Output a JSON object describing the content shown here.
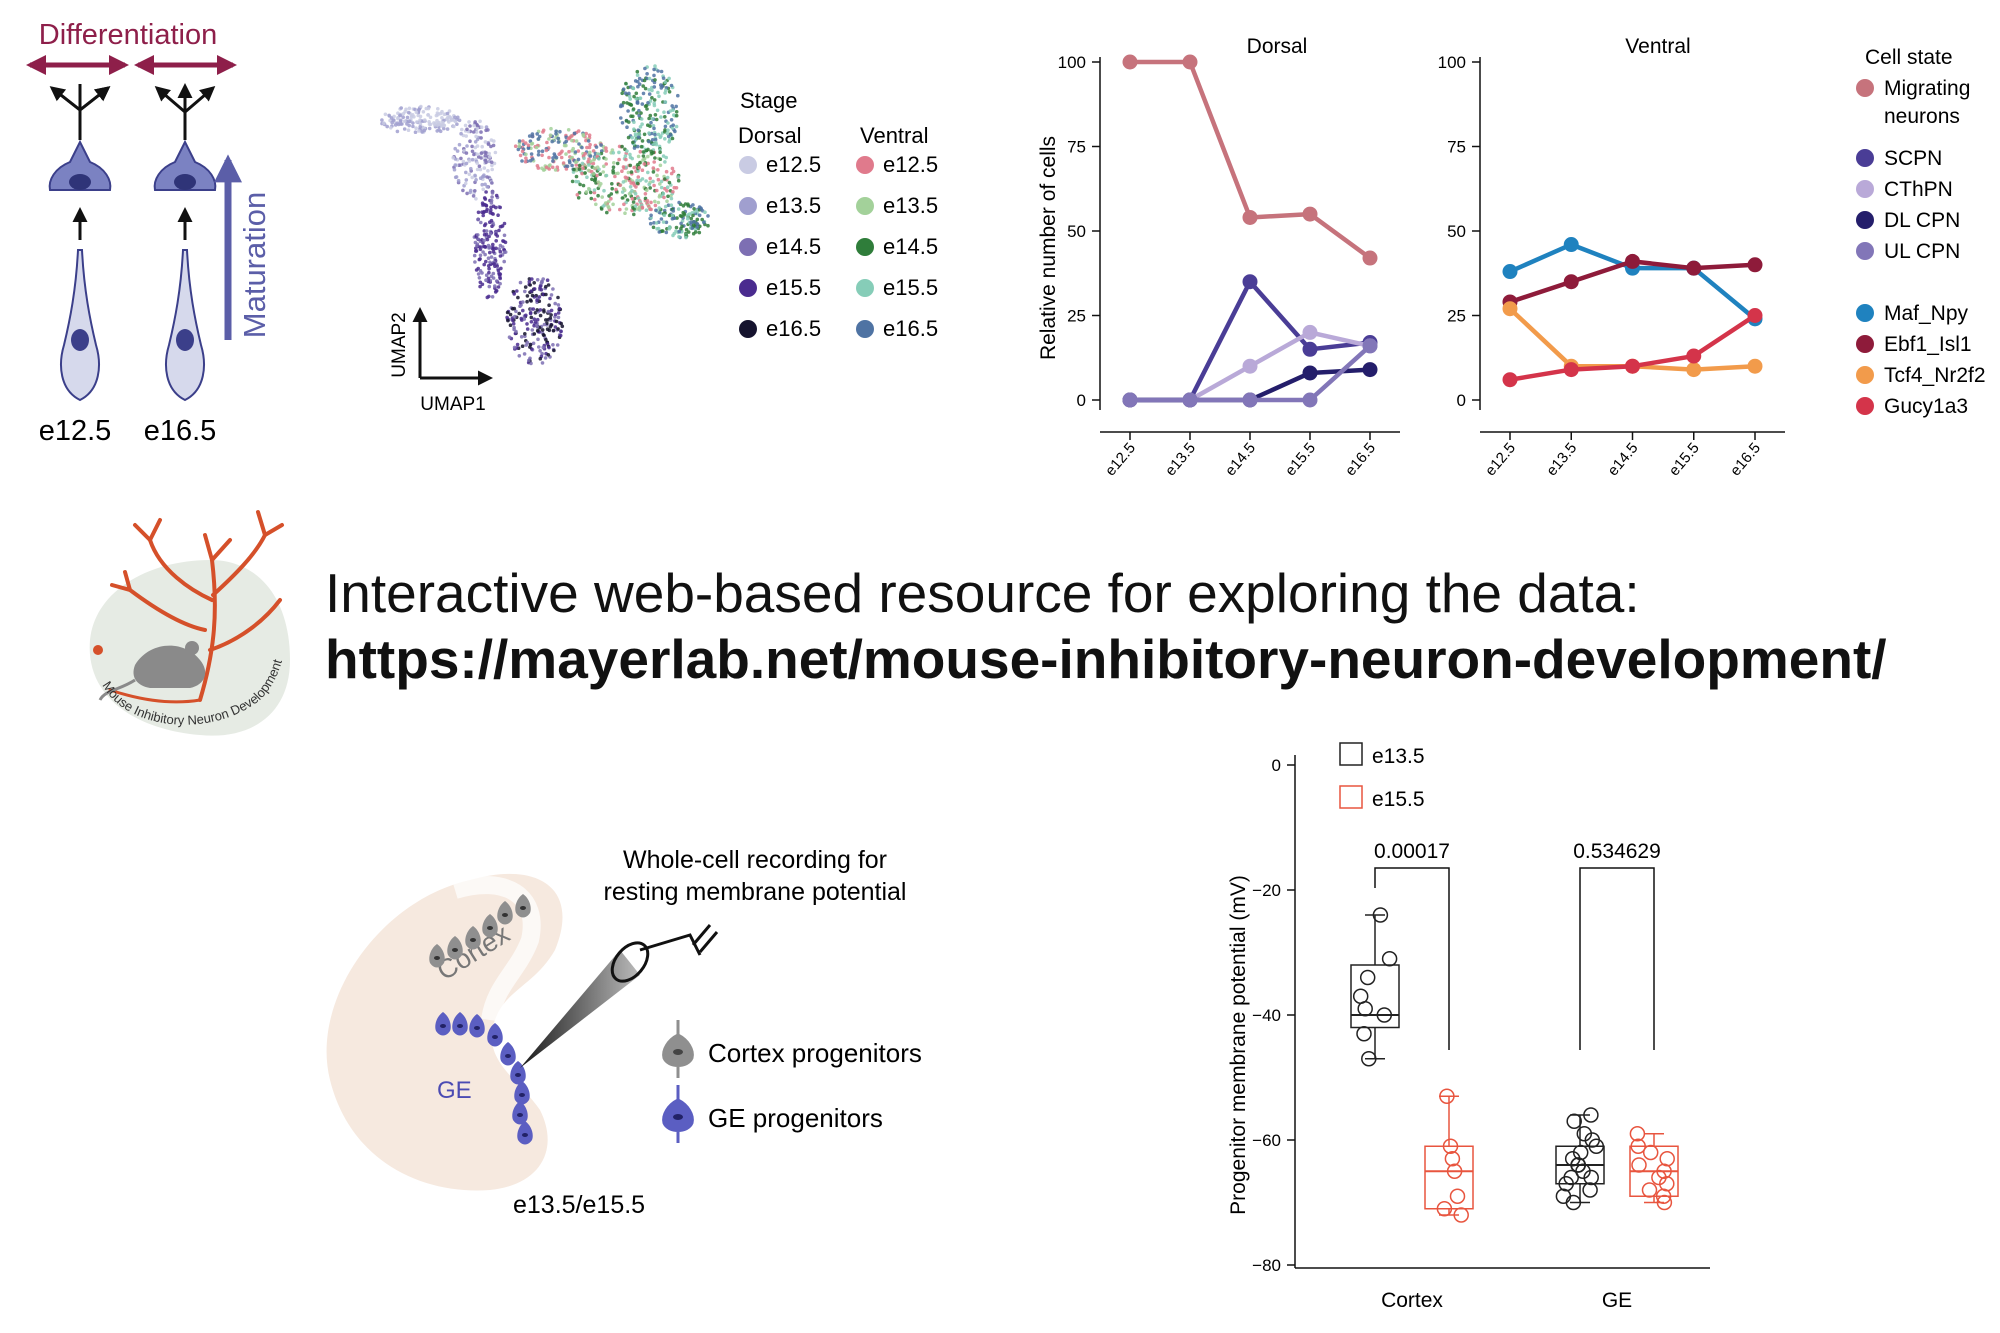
{
  "colors": {
    "differentiation": "#8e1f4a",
    "maturation": "#5b5ea8",
    "cell_fill": "#d6d9ec",
    "soma_fill": "#3b3f8a",
    "logo_branch": "#d5502a",
    "logo_bg": "#e8ece6",
    "ctrl_e13": "#222222",
    "ctrl_e15": "#e8553f"
  },
  "panel_a": {
    "differentiation_label": "Differentiation",
    "maturation_label": "Maturation",
    "stages": [
      "e12.5",
      "e16.5"
    ]
  },
  "umap": {
    "axis_x": "UMAP1",
    "axis_y": "UMAP2",
    "legend_title": "Stage",
    "group_dorsal": "Dorsal",
    "group_ventral": "Ventral",
    "dorsal": [
      {
        "label": "e12.5",
        "color": "#c9cbe3"
      },
      {
        "label": "e13.5",
        "color": "#a09fcf"
      },
      {
        "label": "e14.5",
        "color": "#7d6fb3"
      },
      {
        "label": "e15.5",
        "color": "#4a2b8f"
      },
      {
        "label": "e16.5",
        "color": "#15132e"
      }
    ],
    "ventral": [
      {
        "label": "e12.5",
        "color": "#e07a8c"
      },
      {
        "label": "e13.5",
        "color": "#a3d19a"
      },
      {
        "label": "e14.5",
        "color": "#2f7d3a"
      },
      {
        "label": "e15.5",
        "color": "#86cdb8"
      },
      {
        "label": "e16.5",
        "color": "#4f73a3"
      }
    ]
  },
  "chart_data": [
    {
      "type": "line",
      "title": "Dorsal",
      "ylabel": "Relative number of cells",
      "x": [
        "e12.5",
        "e13.5",
        "e14.5",
        "e15.5",
        "e16.5"
      ],
      "ylim": [
        0,
        100
      ],
      "yticks": [
        0,
        25,
        50,
        75,
        100
      ],
      "series": [
        {
          "name": "Migrating neurons",
          "color": "#c6737c",
          "values": [
            100,
            100,
            54,
            55,
            42
          ]
        },
        {
          "name": "SCPN",
          "color": "#4a3d96",
          "values": [
            0,
            0,
            35,
            15,
            17
          ]
        },
        {
          "name": "CThPN",
          "color": "#b9a9d8",
          "values": [
            0,
            0,
            10,
            20,
            16
          ]
        },
        {
          "name": "DL CPN",
          "color": "#241e6b",
          "values": [
            0,
            0,
            0,
            8,
            9
          ]
        },
        {
          "name": "UL CPN",
          "color": "#8276b8",
          "values": [
            0,
            0,
            0,
            0,
            16
          ]
        }
      ]
    },
    {
      "type": "line",
      "title": "Ventral",
      "x": [
        "e12.5",
        "e13.5",
        "e14.5",
        "e15.5",
        "e16.5"
      ],
      "ylim": [
        0,
        100
      ],
      "yticks": [
        0,
        25,
        50,
        75,
        100
      ],
      "series": [
        {
          "name": "Maf_Npy",
          "color": "#1f82bf",
          "values": [
            38,
            46,
            39,
            39,
            24
          ]
        },
        {
          "name": "Ebf1_Isl1",
          "color": "#8e1b3a",
          "values": [
            29,
            35,
            41,
            39,
            40
          ]
        },
        {
          "name": "Tcf4_Nr2f2",
          "color": "#f29b4b",
          "values": [
            27,
            10,
            10,
            9,
            10
          ]
        },
        {
          "name": "Gucy1a3",
          "color": "#d4344a",
          "values": [
            6,
            9,
            10,
            13,
            25
          ]
        }
      ]
    },
    {
      "type": "box",
      "ylabel": "Progenitor membrane potential (mV)",
      "categories": [
        "Cortex",
        "GE"
      ],
      "ylim": [
        -80,
        0
      ],
      "yticks": [
        0,
        -20,
        -40,
        -60,
        -80
      ],
      "series": [
        {
          "name": "e13.5",
          "color": "#222222",
          "Cortex": {
            "min": -47,
            "q1": -42,
            "median": -40,
            "q3": -32,
            "max": -24,
            "points": [
              -24,
              -31,
              -34,
              -37,
              -39,
              -40,
              -43,
              -47
            ]
          },
          "GE": {
            "min": -70,
            "q1": -67,
            "median": -64,
            "q3": -61,
            "max": -56,
            "points": [
              -56,
              -57,
              -59,
              -60,
              -61,
              -62,
              -63,
              -64,
              -64,
              -65,
              -66,
              -66,
              -67,
              -68,
              -69,
              -70
            ]
          }
        },
        {
          "name": "e15.5",
          "color": "#e8553f",
          "Cortex": {
            "min": -72,
            "q1": -71,
            "median": -65,
            "q3": -61,
            "max": -53,
            "points": [
              -53,
              -61,
              -63,
              -65,
              -69,
              -71,
              -72
            ]
          },
          "GE": {
            "min": -70,
            "q1": -69,
            "median": -65,
            "q3": -61,
            "max": -59,
            "points": [
              -59,
              -61,
              -62,
              -63,
              -64,
              -65,
              -66,
              -67,
              -68,
              -69,
              -70
            ]
          }
        }
      ],
      "comparisons": [
        {
          "category": "Cortex",
          "p": "0.00017"
        },
        {
          "category": "GE",
          "p": "0.534629"
        }
      ]
    }
  ],
  "legend_cell_state": {
    "title": "Cell state",
    "items": [
      "Migrating neurons",
      "SCPN",
      "CThPN",
      "DL CPN",
      "UL CPN",
      "Maf_Npy",
      "Ebf1_Isl1",
      "Tcf4_Nr2f2",
      "Gucy1a3"
    ]
  },
  "logo": {
    "text": "Mouse Inhibitory Neuron Development"
  },
  "resource": {
    "lead": "Interactive web-based resource for exploring the data:",
    "url": "https://mayerlab.net/mouse-inhibitory-neuron-development/"
  },
  "recording": {
    "title_line1": "Whole-cell recording for",
    "title_line2": "resting membrane potential",
    "region_cortex": "Cortex",
    "region_ge": "GE",
    "stage_label": "e13.5/e15.5",
    "legend_cortex": "Cortex progenitors",
    "legend_ge": "GE progenitors"
  }
}
